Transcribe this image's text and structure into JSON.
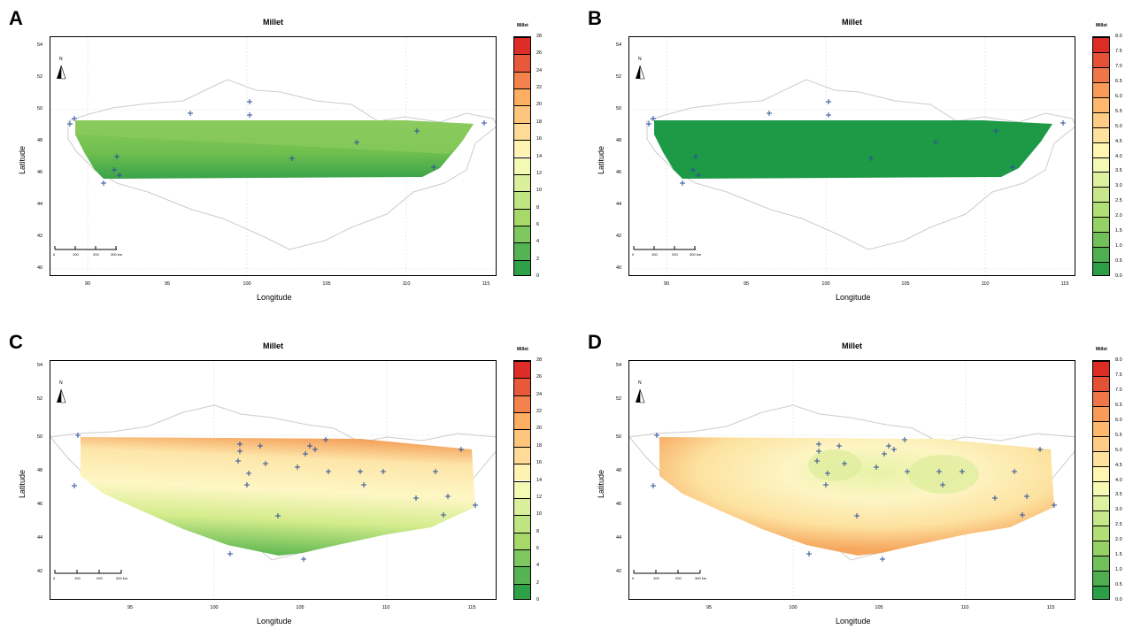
{
  "panels": [
    {
      "letter": "A",
      "title": "Millet",
      "xlabel": "Longitude",
      "ylabel": "Latitude",
      "legend_title": "Millet",
      "x_ticks": [
        "90",
        "95",
        "100",
        "105",
        "110",
        "115"
      ],
      "y_ticks": [
        "40",
        "42",
        "44",
        "46",
        "48",
        "50",
        "52",
        "54"
      ],
      "legend_ticks": [
        "0",
        "2",
        "4",
        "6",
        "8",
        "10",
        "12",
        "14",
        "16",
        "18",
        "20",
        "22",
        "24",
        "26",
        "28"
      ],
      "scalebar_labels": [
        "0",
        "100",
        "200",
        "300 km"
      ],
      "north_label": "N"
    },
    {
      "letter": "B",
      "title": "Millet",
      "xlabel": "Longitude",
      "ylabel": "Latitude",
      "legend_title": "Millet",
      "x_ticks": [
        "90",
        "95",
        "100",
        "105",
        "110",
        "115"
      ],
      "y_ticks": [
        "40",
        "42",
        "44",
        "46",
        "48",
        "50",
        "52",
        "54"
      ],
      "legend_ticks": [
        "0.0",
        "0.5",
        "1.0",
        "1.5",
        "2.0",
        "2.5",
        "3.0",
        "3.5",
        "4.0",
        "4.5",
        "5.0",
        "5.5",
        "6.0",
        "6.5",
        "7.0",
        "7.5",
        "8.0"
      ],
      "scalebar_labels": [
        "0",
        "100",
        "200",
        "300 km"
      ],
      "north_label": "N"
    },
    {
      "letter": "C",
      "title": "Millet",
      "xlabel": "Longitude",
      "ylabel": "Latitude",
      "legend_title": "Millet",
      "x_ticks": [
        "95",
        "100",
        "105",
        "110",
        "115"
      ],
      "y_ticks": [
        "42",
        "44",
        "46",
        "48",
        "50",
        "52",
        "54"
      ],
      "legend_ticks": [
        "0",
        "2",
        "4",
        "6",
        "8",
        "10",
        "12",
        "14",
        "16",
        "18",
        "20",
        "22",
        "24",
        "26",
        "28"
      ],
      "scalebar_labels": [
        "0",
        "100",
        "200",
        "300 km"
      ],
      "north_label": "N"
    },
    {
      "letter": "D",
      "title": "Millet",
      "xlabel": "Longitude",
      "ylabel": "Latitude",
      "legend_title": "Millet",
      "x_ticks": [
        "95",
        "100",
        "105",
        "110",
        "115"
      ],
      "y_ticks": [
        "42",
        "44",
        "46",
        "48",
        "50",
        "52",
        "54"
      ],
      "legend_ticks": [
        "0.0",
        "0.5",
        "1.0",
        "1.5",
        "2.0",
        "2.5",
        "3.0",
        "3.5",
        "4.0",
        "4.5",
        "5.0",
        "5.5",
        "6.0",
        "6.5",
        "7.0",
        "7.5",
        "8.0"
      ],
      "scalebar_labels": [
        "0",
        "100",
        "200",
        "300 km"
      ],
      "north_label": "N"
    }
  ],
  "palette": {
    "green": "#1a9641",
    "yellowgreen": "#a6d96a",
    "cream": "#ffffbf",
    "orange": "#fdae61",
    "red": "#d7191c",
    "station_marker": "#2c4f9a",
    "border": "#cccccc"
  }
}
